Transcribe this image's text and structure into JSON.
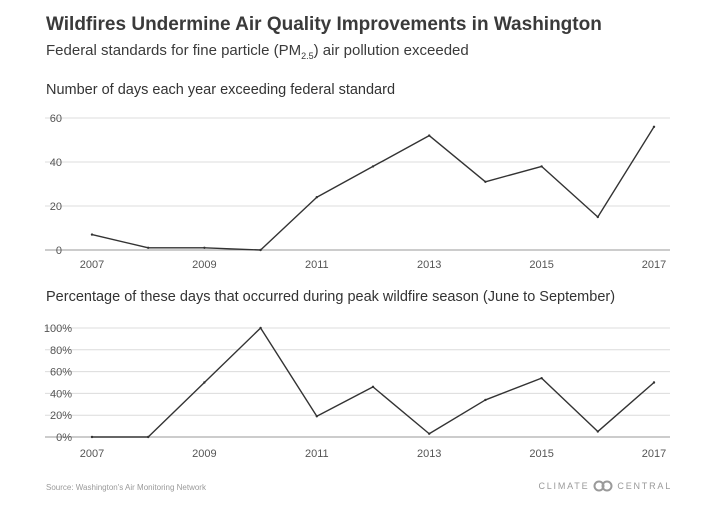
{
  "header": {
    "title": "Wildfires Undermine Air Quality Improvements in Washington",
    "subtitle_pre": "Federal standards for fine particle (PM",
    "subtitle_sub": "2.5",
    "subtitle_post": ") air pollution exceeded"
  },
  "chart_data": [
    {
      "type": "line",
      "title": "Number of days each year exceeding federal standard",
      "x": [
        2007,
        2008,
        2009,
        2010,
        2011,
        2012,
        2013,
        2014,
        2015,
        2016,
        2017
      ],
      "values": [
        7,
        1,
        1,
        0,
        24,
        38,
        52,
        31,
        38,
        15,
        56
      ],
      "xticks": [
        "2007",
        "2009",
        "2011",
        "2013",
        "2015",
        "2017"
      ],
      "yticks": [
        "0",
        "20",
        "40",
        "60"
      ],
      "ylim": [
        0,
        60
      ],
      "xlabel": "",
      "ylabel": "",
      "grid": true
    },
    {
      "type": "line",
      "title": "Percentage of these days that occurred during peak wildfire season (June to September)",
      "x": [
        2007,
        2008,
        2009,
        2010,
        2011,
        2012,
        2013,
        2014,
        2015,
        2016,
        2017
      ],
      "values": [
        0,
        0,
        50,
        100,
        19,
        46,
        3,
        34,
        54,
        5,
        50
      ],
      "xticks": [
        "2007",
        "2009",
        "2011",
        "2013",
        "2015",
        "2017"
      ],
      "yticks": [
        "0%",
        "20%",
        "40%",
        "60%",
        "80%",
        "100%"
      ],
      "ylim": [
        0,
        100
      ],
      "xlabel": "",
      "ylabel": "",
      "grid": true
    }
  ],
  "footer": {
    "source": "Source: Washington's Air Monitoring Network",
    "brand": "CLIMATE CENTRAL",
    "brand_left": "CLIMATE",
    "brand_right": "CENTRAL",
    "brand_icon": "climate-central-logo-icon"
  }
}
